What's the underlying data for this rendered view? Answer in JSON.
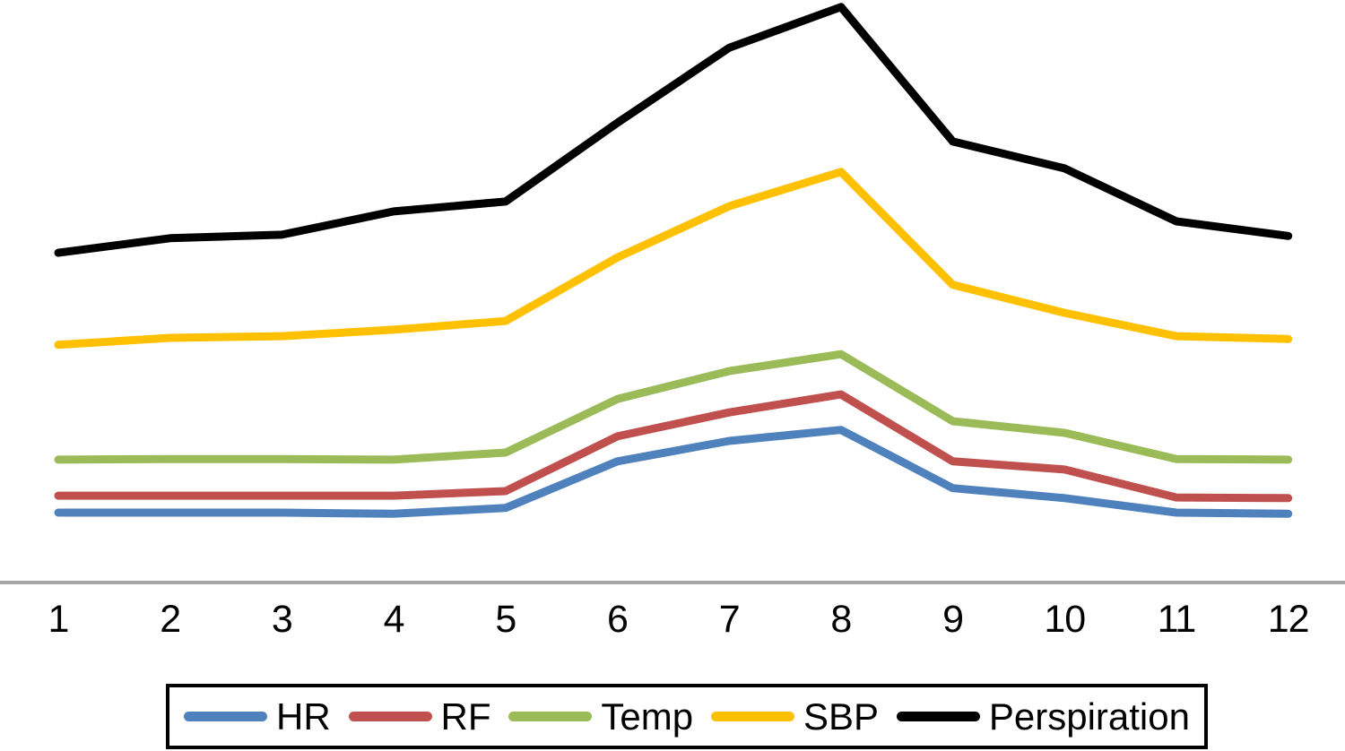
{
  "chart_data": {
    "type": "line",
    "title": "",
    "xlabel": "",
    "ylabel": "",
    "categories": [
      "1",
      "2",
      "3",
      "4",
      "5",
      "6",
      "7",
      "8",
      "9",
      "10",
      "11",
      "12"
    ],
    "series": [
      {
        "name": "HR",
        "color": "#4F81BD",
        "values": [
          12.0,
          12.0,
          12.0,
          11.8,
          12.8,
          20.8,
          24.3,
          26.2,
          16.2,
          14.5,
          12.0,
          11.8
        ]
      },
      {
        "name": "RF",
        "color": "#C0504D",
        "values": [
          14.9,
          14.9,
          14.9,
          14.9,
          15.7,
          25.1,
          29.2,
          32.3,
          20.8,
          19.4,
          14.6,
          14.5
        ]
      },
      {
        "name": "Temp",
        "color": "#9BBB59",
        "values": [
          21.1,
          21.2,
          21.2,
          21.1,
          22.3,
          31.5,
          36.3,
          39.2,
          27.7,
          25.7,
          21.2,
          21.1
        ]
      },
      {
        "name": "SBP",
        "color": "#FFC000",
        "values": [
          40.8,
          42.0,
          42.3,
          43.4,
          44.9,
          55.8,
          64.6,
          70.5,
          51.1,
          46.3,
          42.3,
          41.8
        ]
      },
      {
        "name": "Perspiration",
        "color": "#000000",
        "values": [
          56.6,
          59.1,
          59.7,
          63.7,
          65.4,
          78.9,
          91.8,
          98.8,
          75.7,
          71.1,
          62.0,
          59.5
        ]
      }
    ],
    "ylim": [
      0,
      100
    ],
    "y_axis_labels_visible": false,
    "value_scale_note": "no y-axis labels shown; values are relative units (0-100 = fraction of plot height above the x-axis)",
    "grid": false,
    "legend_position": "bottom",
    "legend_labels": [
      "HR",
      "RF",
      "Temp",
      "SBP",
      "Perspiration"
    ],
    "axis_color": "#A6A6A6",
    "background": "#FFFFFF"
  }
}
